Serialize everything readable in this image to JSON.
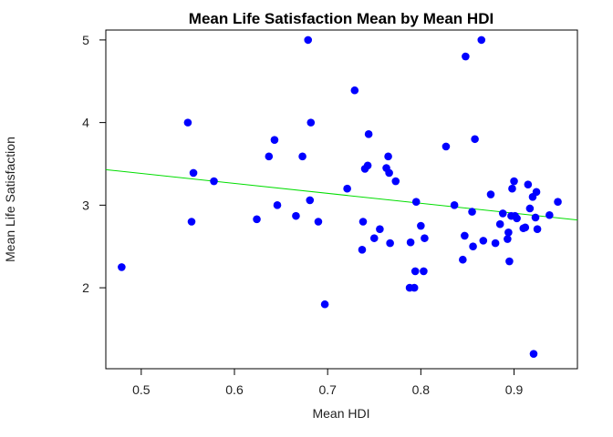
{
  "chart_data": {
    "type": "scatter",
    "title": "Mean Life Satisfaction Mean by Mean HDI",
    "xlabel": "Mean HDI",
    "ylabel": "Mean Life Satisfaction",
    "xlim": [
      0.462,
      0.968
    ],
    "ylim": [
      1.02,
      5.12
    ],
    "xticks": [
      0.5,
      0.6,
      0.7,
      0.8,
      0.9
    ],
    "xtick_labels": [
      "0.5",
      "0.6",
      "0.7",
      "0.8",
      "0.9"
    ],
    "yticks": [
      2,
      3,
      4,
      5
    ],
    "ytick_labels": [
      "2",
      "3",
      "4",
      "5"
    ],
    "grid": false,
    "point_color": "#0000ff",
    "trendline": {
      "color": "#00dd00",
      "x": [
        0.462,
        0.968
      ],
      "y": [
        3.43,
        2.82
      ]
    },
    "series": [
      {
        "x": [
          0.479,
          0.55,
          0.554,
          0.556,
          0.578,
          0.624,
          0.637,
          0.643,
          0.646,
          0.666,
          0.673,
          0.679,
          0.681,
          0.682,
          0.69,
          0.697,
          0.721,
          0.729,
          0.737,
          0.738,
          0.74,
          0.743,
          0.744,
          0.75,
          0.756,
          0.763,
          0.765,
          0.766,
          0.767,
          0.773,
          0.788,
          0.789,
          0.793,
          0.794,
          0.795,
          0.8,
          0.803,
          0.804,
          0.827,
          0.836,
          0.845,
          0.847,
          0.848,
          0.855,
          0.856,
          0.858,
          0.865,
          0.867,
          0.875,
          0.88,
          0.885,
          0.888,
          0.893,
          0.894,
          0.895,
          0.897,
          0.898,
          0.9,
          0.901,
          0.903,
          0.91,
          0.912,
          0.915,
          0.917,
          0.92,
          0.921,
          0.923,
          0.924,
          0.925,
          0.938,
          0.947
        ],
        "y": [
          2.25,
          4.0,
          2.8,
          3.39,
          3.29,
          2.83,
          3.59,
          3.79,
          3.0,
          2.87,
          3.59,
          5.0,
          3.06,
          4.0,
          2.8,
          1.8,
          3.2,
          4.39,
          2.46,
          2.8,
          3.44,
          3.48,
          3.86,
          2.6,
          2.71,
          3.45,
          3.59,
          3.39,
          2.54,
          3.29,
          2.0,
          2.55,
          2.0,
          2.2,
          3.04,
          2.75,
          2.2,
          2.6,
          3.71,
          3.0,
          2.34,
          2.63,
          4.8,
          2.92,
          2.5,
          3.8,
          5.0,
          2.57,
          3.13,
          2.54,
          2.77,
          2.9,
          2.59,
          2.67,
          2.32,
          2.87,
          3.2,
          3.29,
          2.87,
          2.84,
          2.72,
          2.73,
          3.25,
          2.96,
          3.1,
          1.2,
          2.85,
          3.16,
          2.71,
          2.88,
          3.04
        ]
      }
    ]
  }
}
